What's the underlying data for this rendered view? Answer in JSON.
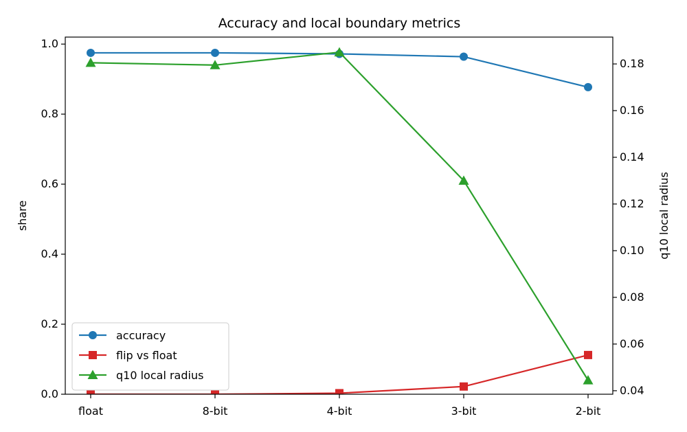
{
  "chart_data": {
    "type": "line",
    "title": "Accuracy and local boundary metrics",
    "categories": [
      "float",
      "8-bit",
      "4-bit",
      "3-bit",
      "2-bit"
    ],
    "ylabel": "share",
    "y2label": "q10 local radius",
    "ylim": [
      0.0,
      1.02
    ],
    "y2lim": [
      0.0385,
      0.1915
    ],
    "yticks": [
      "0.0",
      "0.2",
      "0.4",
      "0.6",
      "0.8",
      "1.0"
    ],
    "y2ticks": [
      "0.04",
      "0.06",
      "0.08",
      "0.10",
      "0.12",
      "0.14",
      "0.16",
      "0.18"
    ],
    "grid": false,
    "legend_position": "lower-left",
    "series": [
      {
        "name": "accuracy",
        "axis": "left",
        "marker": "circle",
        "color": "#1f77b4",
        "values": [
          0.975,
          0.975,
          0.972,
          0.964,
          0.877
        ]
      },
      {
        "name": "flip vs float",
        "axis": "left",
        "marker": "square",
        "color": "#d62728",
        "values": [
          0.0,
          0.0,
          0.003,
          0.022,
          0.112
        ]
      },
      {
        "name": "q10 local radius",
        "axis": "right",
        "marker": "triangle",
        "color": "#2ca02c",
        "values": [
          0.1805,
          0.1795,
          0.185,
          0.13,
          0.0445
        ]
      }
    ]
  }
}
